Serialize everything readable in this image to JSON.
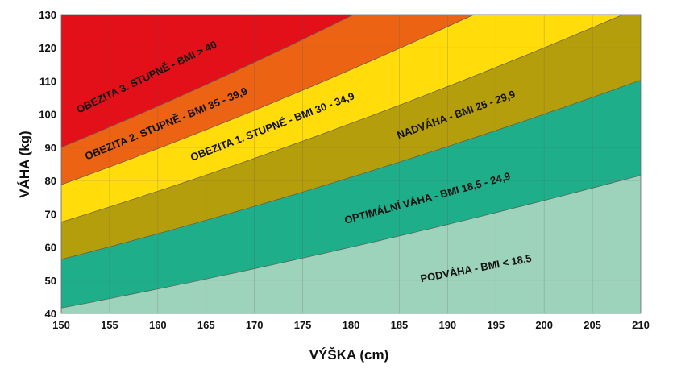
{
  "chart_data": {
    "type": "area",
    "xlabel": "VÝŠKA (cm)",
    "ylabel": "VÁHA (kg)",
    "xlim": [
      150,
      210
    ],
    "ylim": [
      40,
      130
    ],
    "x_ticks": [
      150,
      155,
      160,
      165,
      170,
      175,
      180,
      185,
      190,
      195,
      200,
      205,
      210
    ],
    "y_ticks": [
      40,
      50,
      60,
      70,
      80,
      90,
      100,
      110,
      120,
      130
    ],
    "grid": true,
    "bmi_thresholds": [
      18.5,
      25,
      30,
      35,
      40
    ],
    "zones": [
      {
        "label": "PODVÁHA - BMI < 18,5",
        "bmi_min": 0,
        "bmi_max": 18.5,
        "color": "#9ed3bb",
        "label_x": 193,
        "label_bmi": 14.1
      },
      {
        "label": "OPTIMÁLNÍ VÁHA - BMI 18,5 - 24,9",
        "bmi_min": 18.5,
        "bmi_max": 25,
        "color": "#1fae8a",
        "label_x": 188,
        "label_bmi": 20.85
      },
      {
        "label": "NADVÁHA - BMI 25 - 29,9",
        "bmi_min": 25,
        "bmi_max": 30,
        "color": "#b59e0b",
        "label_x": 191,
        "label_bmi": 27.1
      },
      {
        "label": "OBEZITA 1. STUPNĚ - BMI 30 - 34,9",
        "bmi_min": 30,
        "bmi_max": 35,
        "color": "#ffdc0a",
        "label_x": 172,
        "label_bmi": 32.2
      },
      {
        "label": "OBEZITA 2. STUPNĚ - BMI 35 - 39,9",
        "bmi_min": 35,
        "bmi_max": 40,
        "color": "#ec6314",
        "label_x": 161,
        "label_bmi": 37.1
      },
      {
        "label": "OBEZITA 3. STUPNĚ - BMI > 40",
        "bmi_min": 40,
        "bmi_max": 1000,
        "color": "#e3101a",
        "label_x": 159,
        "label_bmi": 43.6
      }
    ]
  }
}
